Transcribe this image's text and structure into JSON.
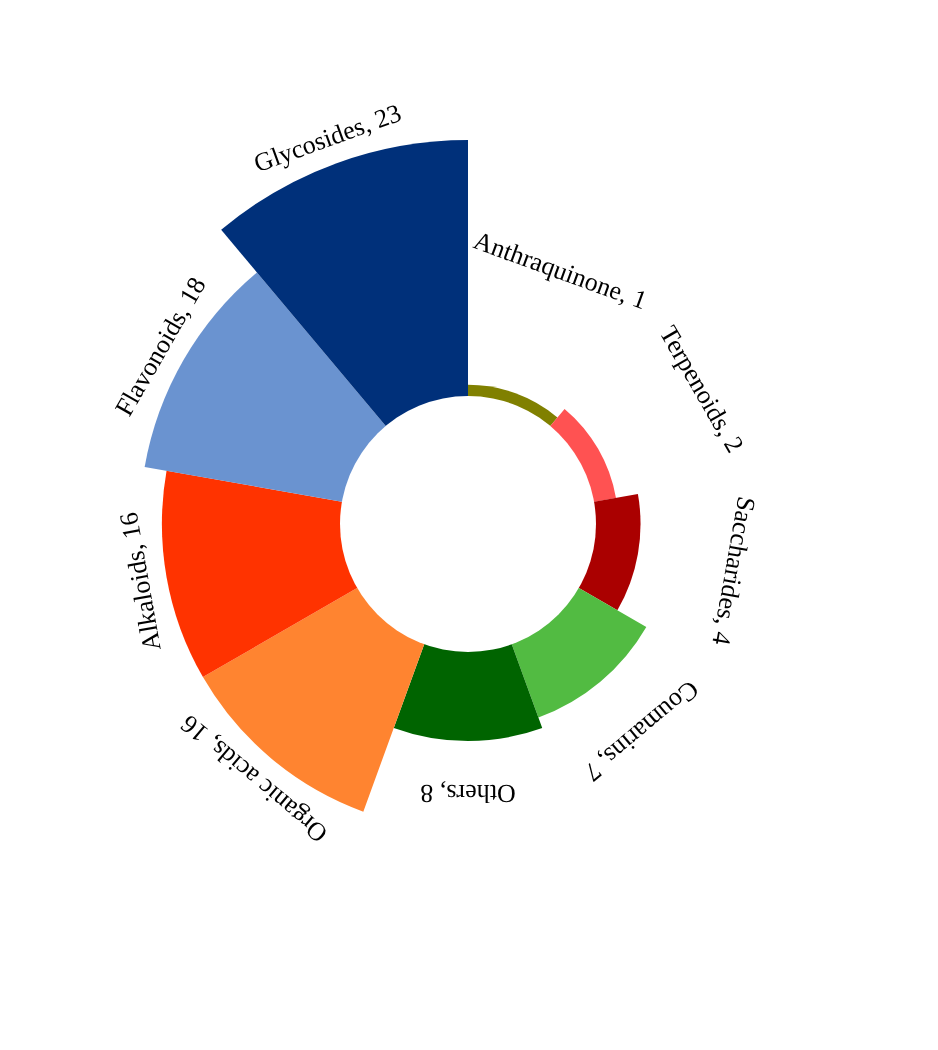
{
  "chart_data": {
    "type": "other",
    "categories": [
      "Anthraquinone",
      "Terpenoids",
      "Saccharides",
      "Coumarins",
      "Others",
      "Organic acids",
      "Alkaloids",
      "Flavonoids",
      "Glycosides"
    ],
    "values": [
      1,
      2,
      4,
      7,
      8,
      16,
      16,
      18,
      23
    ],
    "value_labels": [
      ", 1",
      ", 2",
      ", 4",
      ", 7",
      ", 8",
      ", 16",
      ", 16",
      ", 18",
      ", 23"
    ],
    "colors": [
      "#808000",
      "#ff5252",
      "#aa0000",
      "#52bb42",
      "#006400",
      "#ff8430",
      "#ff3300",
      "#6a93d0",
      "#00307a"
    ]
  }
}
